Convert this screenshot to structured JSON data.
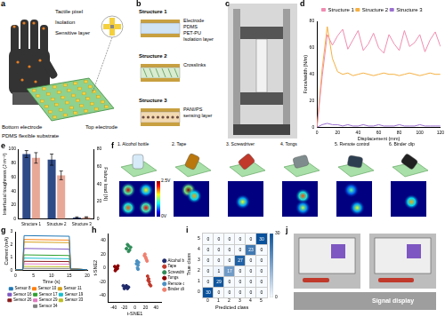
{
  "panels": {
    "a": {
      "label": "a",
      "texts": {
        "tactile_pixel": "Tactile pixel",
        "isolation": "Isolation",
        "sensitive_layer": "Sensitive layer",
        "top_electrode": "Top electrode",
        "bottom_electrode": "Bottom electrode",
        "substrate": "PDMS flexible substrate"
      }
    },
    "b": {
      "label": "b",
      "structures": [
        {
          "title": "Structure 1",
          "layers": [
            "Electrode",
            "PDMS",
            "PET-PU",
            "Isolation layer"
          ]
        },
        {
          "title": "Structure 2",
          "layers": [
            "Crosslinks"
          ]
        },
        {
          "title": "Structure 3",
          "layers": [
            "PANI/PS",
            "sensing layer"
          ]
        }
      ]
    },
    "c": {
      "label": "c"
    },
    "f": {
      "label": "f",
      "colorbar": {
        "range": [
          0,
          2.5
        ],
        "ticks": [
          {
            "value": 2.5,
            "label": "2.5V"
          },
          {
            "value": 0,
            "label": "0V"
          }
        ]
      },
      "items": [
        {
          "title": "1. Alcohol bottle",
          "peaks": [
            {
              "row": 1,
              "col": 1,
              "value": 2.3
            },
            {
              "row": 1,
              "col": 4,
              "value": 1.6
            },
            {
              "row": 4,
              "col": 1,
              "value": 2.0
            },
            {
              "row": 4,
              "col": 4,
              "value": 2.2
            }
          ]
        },
        {
          "title": "2. Tape",
          "peaks": [
            {
              "row": 1,
              "col": 2,
              "value": 2.5
            },
            {
              "row": 2,
              "col": 3,
              "value": 1.8
            }
          ]
        },
        {
          "title": "3. Screwdriver",
          "peaks": [
            {
              "row": 3,
              "col": 2,
              "value": 1.5
            }
          ]
        },
        {
          "title": "4. Tongs",
          "peaks": [
            {
              "row": 2,
              "col": 3,
              "value": 2.0
            },
            {
              "row": 4,
              "col": 3,
              "value": 1.4
            }
          ]
        },
        {
          "title": "5. Remote control",
          "peaks": [
            {
              "row": 1,
              "col": 2,
              "value": 1.2
            },
            {
              "row": 4,
              "col": 3,
              "value": 1.5
            }
          ]
        },
        {
          "title": "6. Binder clip",
          "peaks": [
            {
              "row": 3,
              "col": 3,
              "value": 1.8
            }
          ]
        }
      ]
    },
    "j": {
      "label": "j",
      "caption": "Signal display"
    }
  },
  "chart_data": [
    {
      "panel": "d",
      "type": "line",
      "x_label": "Displacement (mm)",
      "y_label": "Force/width (N/m)",
      "xlim": [
        0,
        120
      ],
      "xticks": [
        0,
        20,
        40,
        60,
        80,
        100,
        120
      ],
      "ylim": [
        0,
        80
      ],
      "yticks": [
        0,
        20,
        40,
        60,
        80
      ],
      "legend": "top",
      "x": [
        0,
        5,
        10,
        15,
        20,
        25,
        30,
        35,
        40,
        45,
        50,
        55,
        60,
        65,
        70,
        75,
        80,
        85,
        90,
        95,
        100,
        105,
        110,
        115,
        120
      ],
      "series": [
        {
          "name": "Structure 1",
          "color": "#f08cb0",
          "values": [
            0,
            38,
            70,
            62,
            69,
            74,
            59,
            66,
            73,
            58,
            63,
            71,
            60,
            56,
            70,
            63,
            58,
            73,
            61,
            64,
            70,
            57,
            66,
            72,
            61
          ]
        },
        {
          "name": "Structure 2",
          "color": "#f5b041",
          "values": [
            0,
            44,
            76,
            52,
            42,
            40,
            41,
            39,
            40,
            41,
            40,
            39,
            40,
            41,
            40,
            40,
            39,
            40,
            41,
            40,
            39,
            40,
            41,
            40,
            40
          ]
        },
        {
          "name": "Structure 3",
          "color": "#9b6fd0",
          "values": [
            0,
            2,
            3,
            2,
            2,
            1,
            2,
            1,
            1,
            2,
            1,
            1,
            2,
            1,
            1,
            1,
            2,
            1,
            1,
            1,
            2,
            1,
            1,
            1,
            1
          ]
        }
      ]
    },
    {
      "panel": "e",
      "type": "bar",
      "categories": [
        "Structure 1",
        "Structure 2",
        "Structure 3"
      ],
      "ylim": [
        0,
        100
      ],
      "yticks": [
        0,
        20,
        40,
        60,
        80,
        100
      ],
      "y2lim": [
        0,
        80
      ],
      "y2ticks": [
        0,
        20,
        40,
        60,
        80
      ],
      "series": [
        {
          "name": "Interfacial toughness (J m⁻²)",
          "color": "#2e4a87",
          "values": [
            93,
            85,
            2
          ],
          "errors": [
            5,
            8,
            1
          ]
        },
        {
          "name": "Failure load (N)",
          "color": "#e8a898",
          "axis": "y2",
          "values": [
            70,
            50,
            2
          ],
          "errors": [
            6,
            5,
            0.5
          ]
        }
      ]
    },
    {
      "panel": "g",
      "type": "line",
      "x_label": "Time (s)",
      "y_label": "Current (mA)",
      "xlim": [
        0,
        20
      ],
      "xticks": [
        0,
        5,
        10,
        15,
        20
      ],
      "ylim": [
        0,
        3
      ],
      "yticks": [
        0,
        1,
        2,
        3
      ],
      "legend": "bottom",
      "x": [
        0,
        2,
        2.4,
        15,
        15.4,
        20
      ],
      "series": [
        {
          "name": "Sensor 8",
          "color": "#1f77b4",
          "values": [
            0.05,
            0.05,
            2.7,
            2.65,
            0.1,
            0.05
          ]
        },
        {
          "name": "Sensor 10",
          "color": "#ff7f0e",
          "values": [
            0.05,
            0.05,
            2.4,
            2.35,
            0.1,
            0.05
          ]
        },
        {
          "name": "Sensor 11",
          "color": "#d4a017",
          "values": [
            0.05,
            0.05,
            2.2,
            2.15,
            0.1,
            0.05
          ]
        },
        {
          "name": "Sensor 16",
          "color": "#7e57c2",
          "values": [
            0.05,
            0.05,
            1.7,
            1.65,
            0.1,
            0.05
          ]
        },
        {
          "name": "Sensor 17",
          "color": "#2ca02c",
          "values": [
            0.05,
            0.05,
            1.2,
            1.15,
            0.1,
            0.05
          ]
        },
        {
          "name": "Sensor 19",
          "color": "#17becf",
          "values": [
            0.05,
            0.05,
            0.95,
            0.9,
            0.1,
            0.05
          ]
        },
        {
          "name": "Sensor 26",
          "color": "#8c1a1a",
          "values": [
            0.05,
            0.05,
            0.7,
            0.68,
            0.1,
            0.05
          ]
        },
        {
          "name": "Sensor 29",
          "color": "#e377c2",
          "values": [
            0.05,
            0.05,
            0.5,
            0.48,
            0.08,
            0.05
          ]
        },
        {
          "name": "Sensor 33",
          "color": "#bcbd22",
          "values": [
            0.05,
            0.05,
            0.3,
            0.28,
            0.07,
            0.05
          ]
        },
        {
          "name": "Sensor 34",
          "color": "#7f7f7f",
          "values": [
            0.05,
            0.05,
            0.15,
            0.14,
            0.06,
            0.05
          ]
        }
      ]
    },
    {
      "panel": "h",
      "type": "scatter",
      "x_label": "t-SNE1",
      "y_label": "t-SNE2",
      "xlim": [
        -50,
        50
      ],
      "xticks": [
        -40,
        -20,
        0,
        20,
        40
      ],
      "ylim": [
        -50,
        50
      ],
      "yticks": [
        -40,
        -20,
        0,
        20,
        40
      ],
      "legend": "right",
      "series": [
        {
          "name": "Alcohol bottle",
          "color": "#1f2a6b",
          "x": [
            -22,
            -18,
            -14,
            -20,
            -16,
            -12
          ],
          "values": [
            -26,
            -28,
            -30,
            -30,
            -26,
            -28
          ]
        },
        {
          "name": "Tape",
          "color": "#c0392b",
          "x": [
            24,
            26,
            27,
            28,
            30,
            25
          ],
          "values": [
            -12,
            -16,
            -20,
            -24,
            -26,
            -18
          ]
        },
        {
          "name": "Screwdriver",
          "color": "#2e8b57",
          "x": [
            -16,
            -12,
            -10,
            -14,
            -8,
            -12
          ],
          "values": [
            28,
            32,
            26,
            34,
            30,
            24
          ]
        },
        {
          "name": "Tongs",
          "color": "#8b0000",
          "x": [
            -38,
            -36,
            -34,
            -32,
            -37,
            -33
          ],
          "values": [
            2,
            -2,
            0,
            3,
            -4,
            -1
          ]
        },
        {
          "name": "Remote control",
          "color": "#4a90c2",
          "x": [
            4,
            6,
            5,
            7,
            3,
            6
          ],
          "values": [
            10,
            4,
            0,
            8,
            6,
            -2
          ]
        },
        {
          "name": "Binder clip",
          "color": "#f08070",
          "x": [
            20,
            22,
            18,
            21,
            23,
            19
          ],
          "values": [
            16,
            12,
            18,
            14,
            10,
            20
          ]
        }
      ]
    },
    {
      "panel": "i",
      "type": "heatmap",
      "x_label": "Predicted class",
      "y_label": "True class",
      "categories": [
        0,
        1,
        2,
        3,
        4,
        5
      ],
      "data_labels": true,
      "cells": [
        [
          30,
          0,
          0,
          0,
          0,
          0
        ],
        [
          0,
          29,
          0,
          0,
          0,
          0
        ],
        [
          0,
          1,
          17,
          0,
          0,
          0
        ],
        [
          0,
          0,
          0,
          27,
          0,
          0
        ],
        [
          0,
          0,
          0,
          0,
          23,
          0
        ],
        [
          0,
          0,
          0,
          0,
          0,
          30
        ]
      ],
      "colorbar": {
        "range": [
          0,
          30
        ],
        "ticks": [
          0,
          30
        ]
      }
    }
  ]
}
